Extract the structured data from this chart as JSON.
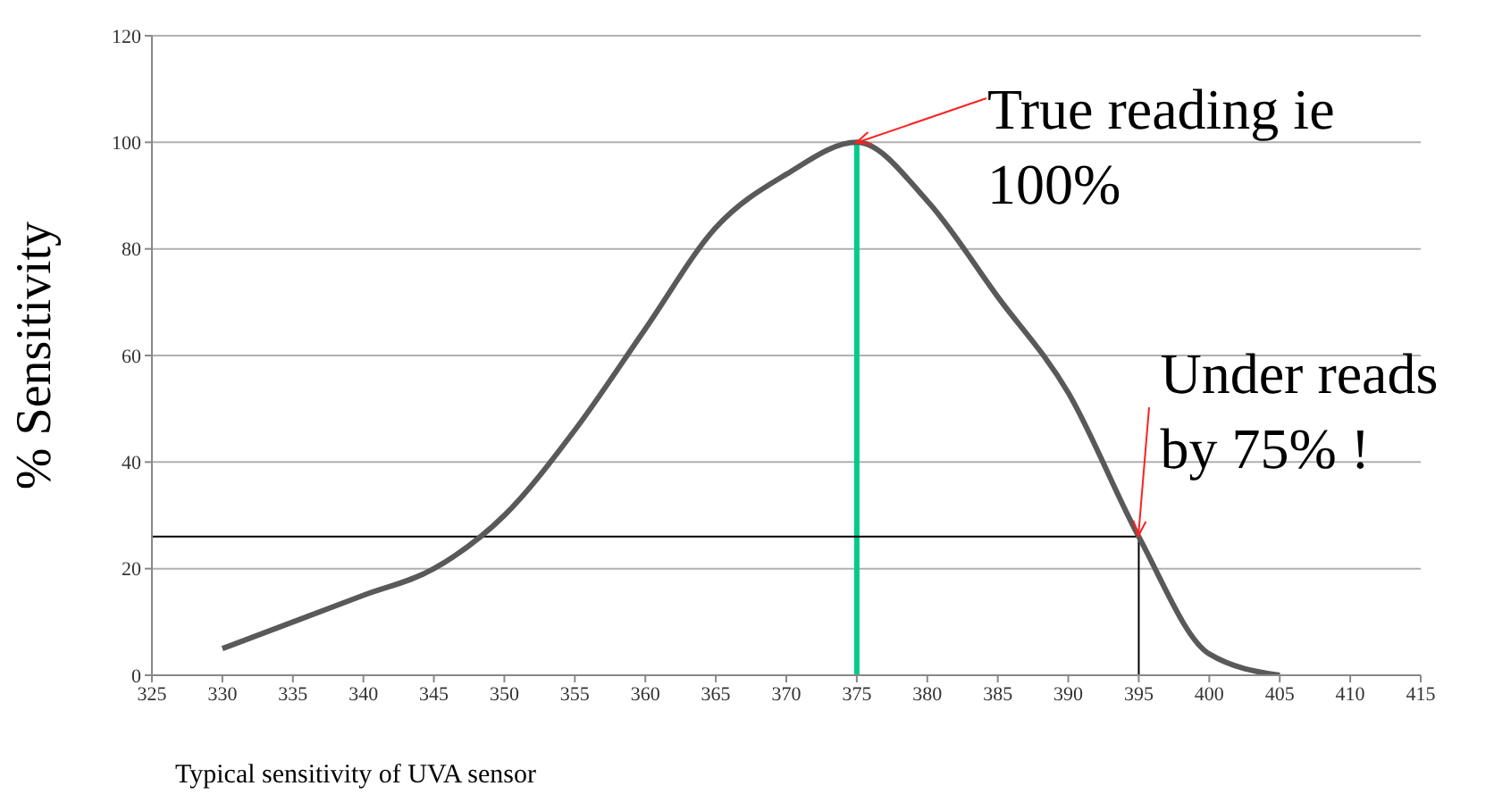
{
  "chart_data": {
    "type": "line",
    "ylabel": "%   Sensitivity",
    "x": [
      330,
      335,
      340,
      345,
      350,
      355,
      360,
      365,
      370,
      375,
      380,
      385,
      390,
      395,
      400,
      405
    ],
    "series": [
      {
        "color": "#595959",
        "values": [
          5,
          10,
          15,
          20,
          30,
          46,
          65,
          84,
          94,
          100,
          89,
          71,
          53,
          26,
          4,
          0
        ]
      }
    ],
    "xlim": [
      325,
      415
    ],
    "xticks": [
      325,
      330,
      335,
      340,
      345,
      350,
      355,
      360,
      365,
      370,
      375,
      380,
      385,
      390,
      395,
      400,
      405,
      410,
      415
    ],
    "ylim": [
      0,
      120
    ],
    "yticks": [
      0,
      20,
      40,
      60,
      80,
      100,
      120
    ],
    "grid": "y",
    "marker": "none",
    "line_style": "solid",
    "ref_lines": [
      {
        "axis": "x",
        "value": 375,
        "color": "#00cc88"
      },
      {
        "axis": "y",
        "value": 26,
        "color": "#000000"
      },
      {
        "axis": "x",
        "value": 395,
        "color": "#000000"
      }
    ],
    "annotations": [
      {
        "text": "True reading ie 100%",
        "x": 375,
        "y": 100
      },
      {
        "text": "Under reads by 75% !",
        "x": 395,
        "y": 26
      },
      "Typical sensitivity of UVA sensor"
    ]
  }
}
